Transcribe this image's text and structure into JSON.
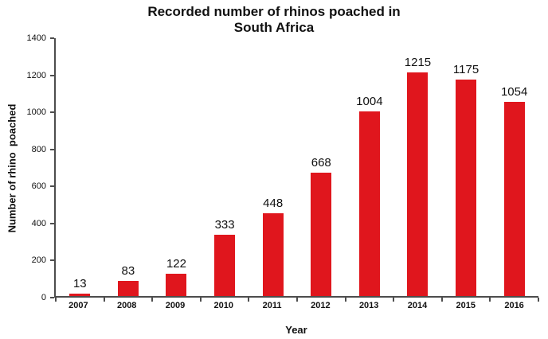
{
  "title": {
    "line1": "Recorded number of rhinos poached in",
    "line2": "South Africa"
  },
  "chart_data": {
    "type": "bar",
    "title": "Recorded number of rhinos poached in South Africa",
    "categories": [
      "2007",
      "2008",
      "2009",
      "2010",
      "2011",
      "2012",
      "2013",
      "2014",
      "2015",
      "2016"
    ],
    "values": [
      13,
      83,
      122,
      333,
      448,
      668,
      1004,
      1215,
      1175,
      1054
    ],
    "xlabel": "Year",
    "ylabel": "Number of rhino  poached",
    "ylim": [
      0,
      1400
    ],
    "yticks": [
      0,
      200,
      400,
      600,
      800,
      1000,
      1200,
      1400
    ],
    "bar_color": "#e0161d",
    "axis_color": "#4d4d4d",
    "grid": false,
    "data_labels": true,
    "legend": "none"
  }
}
